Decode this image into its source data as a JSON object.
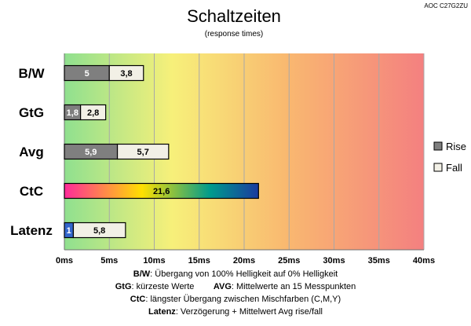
{
  "model_label": "AOC C27G2ZU",
  "chart_data": {
    "type": "bar",
    "orientation": "horizontal",
    "stacked": true,
    "title": "Schaltzeiten",
    "subtitle": "(response times)",
    "categories": [
      "B/W",
      "GtG",
      "Avg",
      "CtC",
      "Latenz"
    ],
    "series": [
      {
        "name": "Rise",
        "values": [
          5,
          1.8,
          5.9,
          21.6,
          1
        ],
        "labels": [
          "5",
          "1,8",
          "5,9",
          "21,6",
          "1"
        ]
      },
      {
        "name": "Fall",
        "values": [
          3.8,
          2.8,
          5.7,
          null,
          5.8
        ],
        "labels": [
          "3,8",
          "2,8",
          "5,7",
          "",
          "5,8"
        ]
      }
    ],
    "xlim": [
      0,
      40
    ],
    "xticks": [
      0,
      5,
      10,
      15,
      20,
      25,
      30,
      35,
      40
    ],
    "xtick_labels": [
      "0ms",
      "5ms",
      "10ms",
      "15ms",
      "20ms",
      "25ms",
      "30ms",
      "35ms",
      "40ms"
    ],
    "grid": true,
    "legend_position": "right",
    "background_gradient": [
      "#8fe08f",
      "#f7f07a",
      "#f9b870",
      "#f48080"
    ],
    "colors": {
      "rise": "#7f7f7f",
      "fall": "#f2f0e6",
      "latency_rise": "#3366cc",
      "ctc_gradient": [
        "#ff2a9a",
        "#ffe000",
        "#009b8c",
        "#1a3aa0"
      ]
    }
  },
  "footnotes": [
    {
      "key": "B/W",
      "text": ":  Übergang von 100% Helligkeit auf 0% Helligkeit"
    },
    {
      "key": "GtG",
      "text": ": kürzeste  Werte",
      "key2": "AVG",
      "text2": ": Mittelwerte  an 15 Messpunkten"
    },
    {
      "key": "CtC",
      "text": ": längster Übergang zwischen Mischfarben (C,M,Y)"
    },
    {
      "key": "Latenz",
      "text": ": Verzögerung  + Mittelwert Avg rise/fall"
    }
  ]
}
